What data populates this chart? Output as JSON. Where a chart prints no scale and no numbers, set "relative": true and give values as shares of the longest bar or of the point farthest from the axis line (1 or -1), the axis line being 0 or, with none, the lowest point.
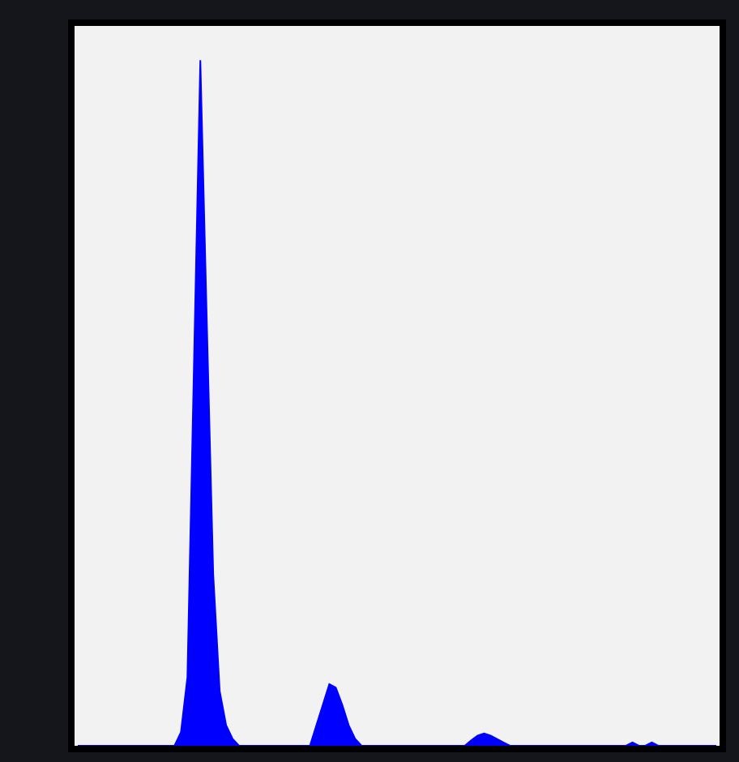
{
  "chart_data": {
    "type": "area",
    "relative": true,
    "color": "#0000ff",
    "categories": [
      null,
      null,
      null,
      null,
      null,
      null,
      null,
      null,
      null,
      null,
      null,
      null,
      null,
      null,
      null,
      null,
      null,
      null,
      null,
      null,
      null,
      null,
      null,
      null,
      null,
      null,
      null,
      null,
      null,
      null,
      null,
      null,
      null,
      null,
      null,
      null,
      null,
      null,
      null,
      null,
      null,
      null,
      null,
      null,
      null,
      null,
      null,
      null,
      null,
      null,
      null,
      null,
      null,
      null,
      null,
      null,
      null,
      null,
      null,
      null,
      null,
      null,
      null,
      null,
      null,
      null,
      null,
      null,
      null,
      null,
      null,
      null,
      null,
      null,
      null,
      null,
      null,
      null,
      null,
      null,
      null,
      null,
      null,
      null,
      null,
      null,
      null,
      null,
      null,
      null,
      null,
      null,
      null,
      null,
      null,
      null,
      null,
      null,
      null,
      null
    ],
    "values": [
      0,
      0,
      0,
      0,
      0,
      0,
      0,
      0,
      0,
      0,
      0,
      0,
      0,
      0,
      0,
      0,
      0.02,
      0.1,
      0.55,
      1.0,
      0.62,
      0.25,
      0.08,
      0.03,
      0.01,
      0,
      0,
      0,
      0,
      0,
      0,
      0,
      0,
      0,
      0,
      0,
      0,
      0.03,
      0.06,
      0.09,
      0.085,
      0.06,
      0.03,
      0.01,
      0,
      0,
      0,
      0,
      0,
      0,
      0,
      0,
      0,
      0,
      0,
      0,
      0,
      0,
      0,
      0,
      0,
      0.008,
      0.015,
      0.018,
      0.015,
      0.01,
      0.005,
      0,
      0,
      0,
      0,
      0,
      0,
      0,
      0,
      0,
      0,
      0,
      0,
      0,
      0,
      0,
      0,
      0,
      0,
      0,
      0.005,
      0,
      0,
      0.005,
      0,
      0,
      0,
      0,
      0,
      0,
      0,
      0,
      0,
      0
    ]
  }
}
